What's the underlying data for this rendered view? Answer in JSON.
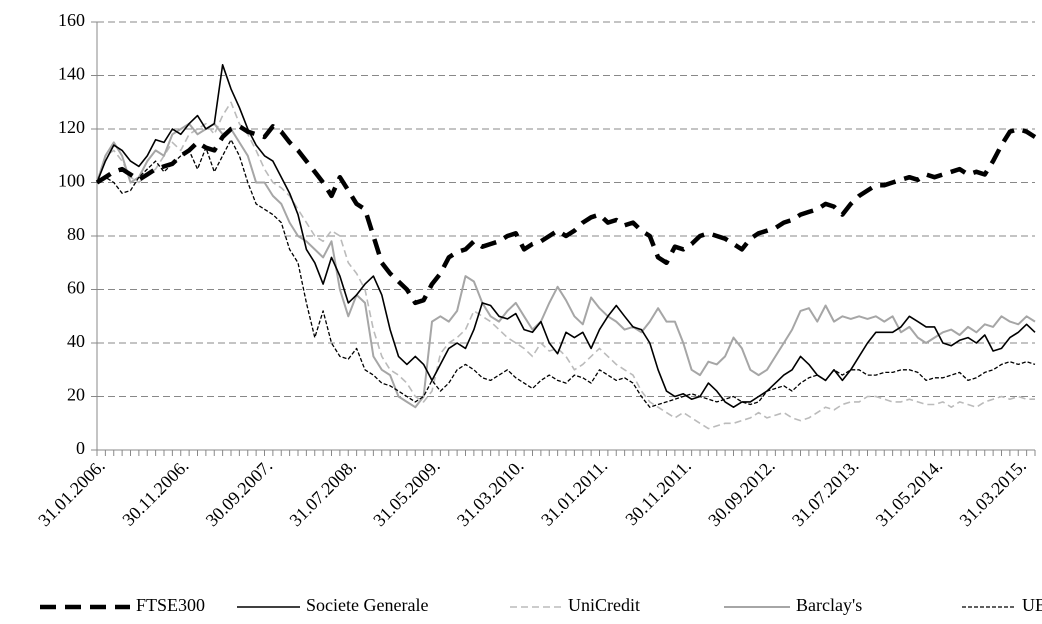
{
  "chart_data": {
    "type": "line",
    "categories": [
      "31.01.2006.",
      null,
      null,
      null,
      null,
      null,
      null,
      null,
      null,
      null,
      "30.11.2006.",
      null,
      null,
      null,
      null,
      null,
      null,
      null,
      null,
      null,
      "30.09.2007.",
      null,
      null,
      null,
      null,
      null,
      null,
      null,
      null,
      null,
      "31.07.2008.",
      null,
      null,
      null,
      null,
      null,
      null,
      null,
      null,
      null,
      "31.05.2009.",
      null,
      null,
      null,
      null,
      null,
      null,
      null,
      null,
      null,
      "31.03.2010.",
      null,
      null,
      null,
      null,
      null,
      null,
      null,
      null,
      null,
      "31.01.2011.",
      null,
      null,
      null,
      null,
      null,
      null,
      null,
      null,
      null,
      "30.11.2011.",
      null,
      null,
      null,
      null,
      null,
      null,
      null,
      null,
      null,
      "30.09.2012.",
      null,
      null,
      null,
      null,
      null,
      null,
      null,
      null,
      null,
      "31.07.2013.",
      null,
      null,
      null,
      null,
      null,
      null,
      null,
      null,
      null,
      "31.05.2014.",
      null,
      null,
      null,
      null,
      null,
      null,
      null,
      null,
      null,
      "31.03.2015.",
      null,
      null
    ],
    "series": [
      {
        "name": "FTSE300",
        "color": "#000000",
        "values": [
          100,
          102,
          104,
          105,
          103,
          101,
          103,
          105,
          106,
          107,
          110,
          112,
          115,
          113,
          112,
          117,
          120,
          121,
          119,
          118,
          117,
          121,
          119,
          115,
          112,
          108,
          104,
          100,
          95,
          102,
          97,
          92,
          90,
          80,
          70,
          66,
          63,
          60,
          55,
          56,
          62,
          66,
          72,
          74,
          75,
          78,
          76,
          77,
          78,
          80,
          81,
          75,
          77,
          78,
          80,
          82,
          80,
          82,
          85,
          87,
          88,
          85,
          86,
          84,
          85,
          82,
          80,
          72,
          70,
          76,
          75,
          77,
          80,
          81,
          80,
          79,
          77,
          75,
          79,
          81,
          82,
          83,
          85,
          86,
          88,
          89,
          90,
          92,
          91,
          88,
          92,
          95,
          97,
          99,
          99,
          100,
          101,
          102,
          101,
          103,
          102,
          103,
          104,
          105,
          103,
          104,
          103,
          108,
          114,
          119,
          120,
          119,
          117
        ]
      },
      {
        "name": "Societe Generale",
        "color": "#000000",
        "values": [
          100,
          108,
          114,
          112,
          108,
          106,
          110,
          116,
          115,
          120,
          118,
          122,
          125,
          120,
          122,
          144,
          135,
          128,
          120,
          114,
          110,
          108,
          102,
          96,
          88,
          75,
          70,
          62,
          72,
          65,
          55,
          58,
          62,
          65,
          58,
          45,
          35,
          32,
          35,
          32,
          26,
          32,
          38,
          40,
          38,
          45,
          55,
          54,
          50,
          49,
          51,
          45,
          44,
          48,
          40,
          36,
          44,
          42,
          44,
          38,
          45,
          50,
          54,
          50,
          46,
          45,
          40,
          30,
          22,
          20,
          21,
          19,
          20,
          25,
          22,
          18,
          16,
          18,
          18,
          20,
          22,
          25,
          28,
          30,
          35,
          32,
          28,
          26,
          30,
          26,
          30,
          35,
          40,
          44,
          44,
          44,
          46,
          50,
          48,
          46,
          46,
          40,
          39,
          41,
          42,
          40,
          43,
          37,
          38,
          42,
          44,
          47,
          44
        ]
      },
      {
        "name": "UniCredit",
        "color": "#bbbbbb",
        "values": [
          100,
          110,
          112,
          108,
          102,
          100,
          103,
          105,
          110,
          115,
          112,
          118,
          120,
          122,
          118,
          125,
          130,
          122,
          118,
          112,
          105,
          100,
          98,
          95,
          90,
          85,
          80,
          78,
          82,
          80,
          70,
          66,
          60,
          45,
          35,
          30,
          28,
          25,
          20,
          18,
          22,
          36,
          40,
          42,
          45,
          52,
          50,
          48,
          45,
          42,
          40,
          38,
          35,
          40,
          37,
          38,
          35,
          30,
          32,
          35,
          38,
          35,
          32,
          30,
          28,
          22,
          18,
          16,
          14,
          12,
          14,
          12,
          10,
          8,
          9,
          10,
          10,
          11,
          12,
          14,
          12,
          13,
          14,
          12,
          11,
          12,
          14,
          16,
          15,
          17,
          18,
          18,
          20,
          20,
          19,
          18,
          18,
          19,
          18,
          17,
          17,
          18,
          16,
          18,
          17,
          16,
          18,
          19,
          20,
          19,
          20,
          19,
          19
        ]
      },
      {
        "name": "Barclay's",
        "color": "#a6a6a6",
        "values": [
          100,
          110,
          115,
          110,
          100,
          102,
          108,
          112,
          110,
          118,
          120,
          122,
          118,
          120,
          122,
          118,
          120,
          115,
          110,
          100,
          100,
          95,
          92,
          85,
          80,
          78,
          75,
          72,
          78,
          60,
          50,
          58,
          55,
          35,
          30,
          28,
          20,
          18,
          16,
          20,
          48,
          50,
          48,
          52,
          65,
          63,
          55,
          50,
          48,
          52,
          55,
          50,
          45,
          48,
          55,
          61,
          56,
          50,
          47,
          57,
          53,
          50,
          48,
          45,
          46,
          44,
          48,
          53,
          48,
          48,
          40,
          30,
          28,
          33,
          32,
          35,
          42,
          38,
          30,
          28,
          30,
          35,
          40,
          45,
          52,
          53,
          48,
          54,
          48,
          50,
          49,
          50,
          49,
          50,
          48,
          50,
          44,
          46,
          42,
          40,
          42,
          44,
          45,
          43,
          46,
          44,
          47,
          46,
          50,
          48,
          47,
          50,
          48
        ]
      },
      {
        "name": "UBS",
        "color": "#000000",
        "values": [
          100,
          102,
          100,
          96,
          97,
          102,
          105,
          108,
          104,
          107,
          110,
          112,
          105,
          113,
          104,
          110,
          116,
          110,
          100,
          92,
          90,
          88,
          85,
          75,
          70,
          55,
          42,
          52,
          40,
          35,
          34,
          38,
          30,
          28,
          25,
          24,
          22,
          20,
          18,
          20,
          26,
          22,
          25,
          30,
          32,
          30,
          27,
          26,
          28,
          30,
          27,
          25,
          23,
          26,
          28,
          26,
          25,
          28,
          27,
          25,
          30,
          28,
          26,
          27,
          25,
          20,
          16,
          17,
          18,
          19,
          20,
          21,
          20,
          19,
          18,
          19,
          20,
          18,
          17,
          18,
          22,
          23,
          24,
          22,
          25,
          27,
          28,
          26,
          30,
          28,
          30,
          30,
          28,
          28,
          29,
          29,
          30,
          30,
          29,
          26,
          27,
          27,
          28,
          29,
          26,
          27,
          29,
          30,
          32,
          33,
          32,
          33,
          32
        ]
      }
    ],
    "ylim": [
      0,
      160
    ],
    "yticks": [
      0,
      20,
      40,
      60,
      80,
      100,
      120,
      140,
      160
    ],
    "grid": true,
    "legend": "bottom"
  }
}
